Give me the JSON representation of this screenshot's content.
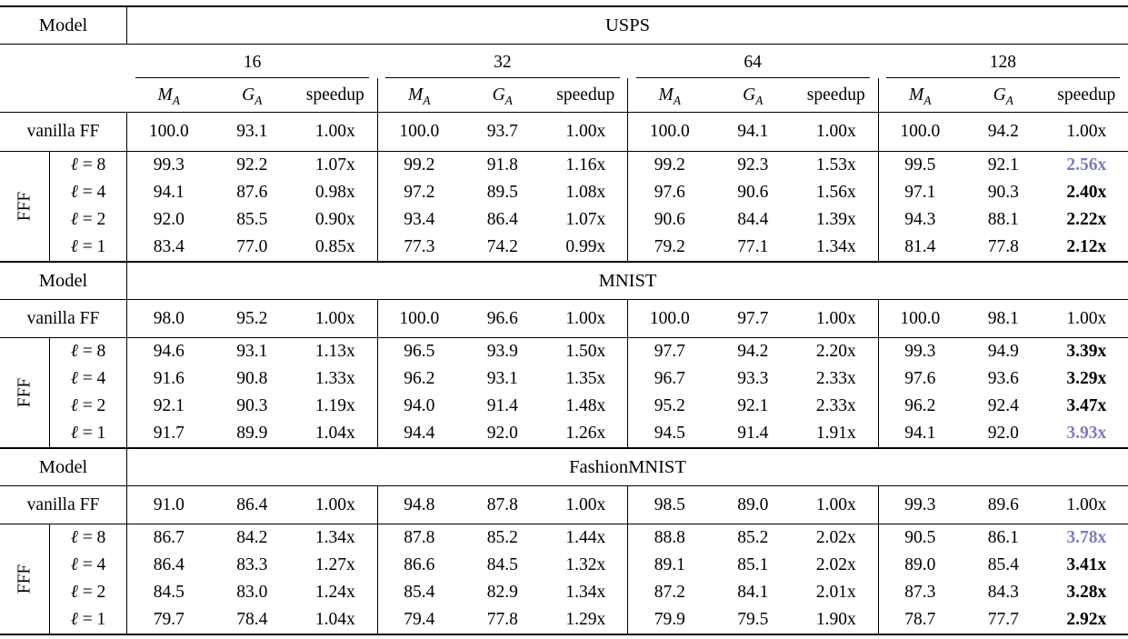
{
  "colors": {
    "highlight_best_speedup": "#7c7bc4",
    "text": "#000000",
    "background": "#ffffff",
    "rule": "#000000"
  },
  "header": {
    "model_label": "Model",
    "batch_sizes": [
      "16",
      "32",
      "64",
      "128"
    ],
    "metric_m": "M",
    "metric_m_sub": "A",
    "metric_g": "G",
    "metric_g_sub": "A",
    "speedup_label": "speedup"
  },
  "rows": {
    "vanilla_label": "vanilla FF",
    "group_label": "FFF",
    "ell_symbol": "ℓ",
    "equals": "="
  },
  "sections": [
    {
      "dataset": "USPS",
      "vanilla": [
        "100.0",
        "93.1",
        "1.00x",
        "100.0",
        "93.7",
        "1.00x",
        "100.0",
        "94.1",
        "1.00x",
        "100.0",
        "94.2",
        "1.00x"
      ],
      "fff": [
        {
          "ell": "8",
          "cells": [
            "99.3",
            "92.2",
            "1.07x",
            "99.2",
            "91.8",
            "1.16x",
            "99.2",
            "92.3",
            "1.53x",
            "99.5",
            "92.1",
            "2.56x"
          ],
          "speedup_style": "best"
        },
        {
          "ell": "4",
          "cells": [
            "94.1",
            "87.6",
            "0.98x",
            "97.2",
            "89.5",
            "1.08x",
            "97.6",
            "90.6",
            "1.56x",
            "97.1",
            "90.3",
            "2.40x"
          ],
          "speedup_style": "bold"
        },
        {
          "ell": "2",
          "cells": [
            "92.0",
            "85.5",
            "0.90x",
            "93.4",
            "86.4",
            "1.07x",
            "90.6",
            "84.4",
            "1.39x",
            "94.3",
            "88.1",
            "2.22x"
          ],
          "speedup_style": "bold"
        },
        {
          "ell": "1",
          "cells": [
            "83.4",
            "77.0",
            "0.85x",
            "77.3",
            "74.2",
            "0.99x",
            "79.2",
            "77.1",
            "1.34x",
            "81.4",
            "77.8",
            "2.12x"
          ],
          "speedup_style": "bold"
        }
      ]
    },
    {
      "dataset": "MNIST",
      "vanilla": [
        "98.0",
        "95.2",
        "1.00x",
        "100.0",
        "96.6",
        "1.00x",
        "100.0",
        "97.7",
        "1.00x",
        "100.0",
        "98.1",
        "1.00x"
      ],
      "fff": [
        {
          "ell": "8",
          "cells": [
            "94.6",
            "93.1",
            "1.13x",
            "96.5",
            "93.9",
            "1.50x",
            "97.7",
            "94.2",
            "2.20x",
            "99.3",
            "94.9",
            "3.39x"
          ],
          "speedup_style": "bold"
        },
        {
          "ell": "4",
          "cells": [
            "91.6",
            "90.8",
            "1.33x",
            "96.2",
            "93.1",
            "1.35x",
            "96.7",
            "93.3",
            "2.33x",
            "97.6",
            "93.6",
            "3.29x"
          ],
          "speedup_style": "bold"
        },
        {
          "ell": "2",
          "cells": [
            "92.1",
            "90.3",
            "1.19x",
            "94.0",
            "91.4",
            "1.48x",
            "95.2",
            "92.1",
            "2.33x",
            "96.2",
            "92.4",
            "3.47x"
          ],
          "speedup_style": "bold"
        },
        {
          "ell": "1",
          "cells": [
            "91.7",
            "89.9",
            "1.04x",
            "94.4",
            "92.0",
            "1.26x",
            "94.5",
            "91.4",
            "1.91x",
            "94.1",
            "92.0",
            "3.93x"
          ],
          "speedup_style": "best"
        }
      ]
    },
    {
      "dataset": "FashionMNIST",
      "vanilla": [
        "91.0",
        "86.4",
        "1.00x",
        "94.8",
        "87.8",
        "1.00x",
        "98.5",
        "89.0",
        "1.00x",
        "99.3",
        "89.6",
        "1.00x"
      ],
      "fff": [
        {
          "ell": "8",
          "cells": [
            "86.7",
            "84.2",
            "1.34x",
            "87.8",
            "85.2",
            "1.44x",
            "88.8",
            "85.2",
            "2.02x",
            "90.5",
            "86.1",
            "3.78x"
          ],
          "speedup_style": "best"
        },
        {
          "ell": "4",
          "cells": [
            "86.4",
            "83.3",
            "1.27x",
            "86.6",
            "84.5",
            "1.32x",
            "89.1",
            "85.1",
            "2.02x",
            "89.0",
            "85.4",
            "3.41x"
          ],
          "speedup_style": "bold"
        },
        {
          "ell": "2",
          "cells": [
            "84.5",
            "83.0",
            "1.24x",
            "85.4",
            "82.9",
            "1.34x",
            "87.2",
            "84.1",
            "2.01x",
            "87.3",
            "84.3",
            "3.28x"
          ],
          "speedup_style": "bold"
        },
        {
          "ell": "1",
          "cells": [
            "79.7",
            "78.4",
            "1.04x",
            "79.4",
            "77.8",
            "1.29x",
            "79.9",
            "79.5",
            "1.90x",
            "78.7",
            "77.7",
            "2.92x"
          ],
          "speedup_style": "bold"
        }
      ]
    }
  ]
}
